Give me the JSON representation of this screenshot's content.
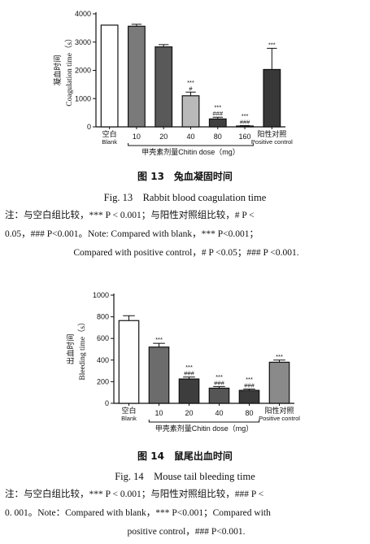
{
  "chart_data": [
    {
      "type": "bar",
      "ylabel_cn": "凝血时间",
      "ylabel_en": "Coagulation time（s）",
      "ylim": [
        0,
        4000
      ],
      "yticks": [
        0,
        1000,
        2000,
        3000,
        4000
      ],
      "categories": [
        {
          "top": "空白",
          "bottom": "Blank"
        },
        {
          "top": "10",
          "bottom": ""
        },
        {
          "top": "20",
          "bottom": ""
        },
        {
          "top": "40",
          "bottom": ""
        },
        {
          "top": "80",
          "bottom": ""
        },
        {
          "top": "160",
          "bottom": ""
        },
        {
          "top": "阳性对照",
          "bottom": "Positive control"
        }
      ],
      "values": [
        3600,
        3560,
        2830,
        1100,
        280,
        30,
        2030
      ],
      "errors": [
        0,
        70,
        80,
        130,
        60,
        15,
        750
      ],
      "fills": [
        "#ffffff",
        "#7a7a7a",
        "#595959",
        "#b9b9b9",
        "#3f3f3f",
        "#222222",
        "#383838"
      ],
      "significance": [
        [],
        [],
        [],
        [
          "***",
          "#"
        ],
        [
          "***",
          "###"
        ],
        [
          "***",
          "###"
        ],
        [
          "***"
        ]
      ],
      "group_label": "甲壳素剂量Chitin dose（mg）",
      "caption_cn": "图 13　兔血凝固时间",
      "caption_en": "Fig. 13　Rabbit blood coagulation time",
      "note": {
        "line1": "注：与空白组比较，*** P < 0.001；与阳性对照组比较，# P <",
        "line2": "0.05，### P<0.001。Note: Compared with blank，*** P<0.001；",
        "line3": "Compared with positive control，# P <0.05；### P <0.001."
      }
    },
    {
      "type": "bar",
      "ylabel_cn": "出血时间",
      "ylabel_en": "Bleeding time（s）",
      "ylim": [
        0,
        1000
      ],
      "yticks": [
        0,
        200,
        400,
        600,
        800,
        1000
      ],
      "categories": [
        {
          "top": "空白",
          "bottom": "Blank"
        },
        {
          "top": "10",
          "bottom": ""
        },
        {
          "top": "20",
          "bottom": ""
        },
        {
          "top": "40",
          "bottom": ""
        },
        {
          "top": "80",
          "bottom": ""
        },
        {
          "top": "阳性对照",
          "bottom": "Positive control"
        }
      ],
      "values": [
        765,
        520,
        225,
        140,
        120,
        380
      ],
      "errors": [
        45,
        35,
        18,
        15,
        12,
        20
      ],
      "fills": [
        "#ffffff",
        "#6c6c6c",
        "#3d3d3d",
        "#555555",
        "#3a3a3a",
        "#8a8a8a"
      ],
      "significance": [
        [],
        [
          "***"
        ],
        [
          "***",
          "###"
        ],
        [
          "***",
          "###"
        ],
        [
          "***",
          "###"
        ],
        [
          "***"
        ]
      ],
      "group_label": "甲壳素剂量Chitin dose（mg）",
      "caption_cn": "图 14　鼠尾出血时间",
      "caption_en": "Fig. 14　Mouse tail bleeding time",
      "note": {
        "line1": "注：与空白组比较，*** P < 0.001；与阳性对照组比较，### P <",
        "line2": "0. 001。Note：Compared with blank，*** P<0.001；Compared with",
        "line3": "positive control，### P<0.001."
      }
    }
  ]
}
